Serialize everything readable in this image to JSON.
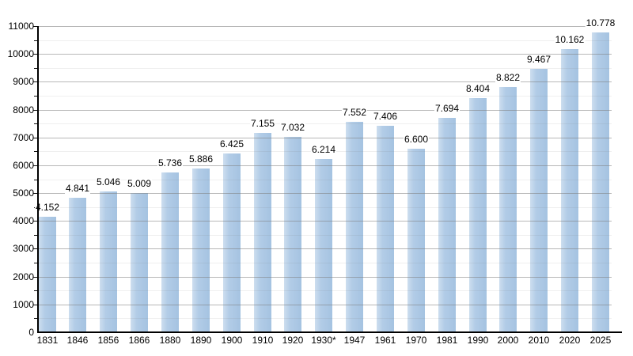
{
  "chart_data": {
    "type": "bar",
    "title": "",
    "categories": [
      "1831",
      "1846",
      "1856",
      "1866",
      "1880",
      "1890",
      "1900",
      "1910",
      "1920",
      "1930*",
      "1947",
      "1961",
      "1970",
      "1981",
      "1990",
      "2000",
      "2010",
      "2020",
      "2025"
    ],
    "values": [
      4152,
      4841,
      5046,
      5009,
      5736,
      5886,
      6425,
      7155,
      7032,
      6214,
      7552,
      7406,
      6600,
      7694,
      8404,
      8822,
      9467,
      10162,
      10778
    ],
    "value_labels": [
      "4.152",
      "4.841",
      "5.046",
      "5.009",
      "5.736",
      "5.886",
      "6.425",
      "7.155",
      "7.032",
      "6.214",
      "7.552",
      "7.406",
      "6.600",
      "7.694",
      "8.404",
      "8.822",
      "9.467",
      "10.162",
      "10.778"
    ],
    "xlabel": "",
    "ylabel": "",
    "ylim": [
      0,
      11000
    ],
    "y_major_step": 1000,
    "y_minor_step": 500,
    "y_tick_labels": [
      "0",
      "1000",
      "2000",
      "3000",
      "4000",
      "5000",
      "6000",
      "7000",
      "8000",
      "9000",
      "10000",
      "11000"
    ],
    "grid": "major and minor horizontal gridlines",
    "legend": "none",
    "colors": {
      "bar_light": "#cddeef",
      "bar_mid": "#b2cce7",
      "bar_dark": "#a5c3e1",
      "grid_major": "rgba(125,125,125,0.55)",
      "grid_minor": "rgba(120,120,120,0.12)",
      "axis": "#000000",
      "text": "#000000",
      "background": "#ffffff"
    }
  }
}
